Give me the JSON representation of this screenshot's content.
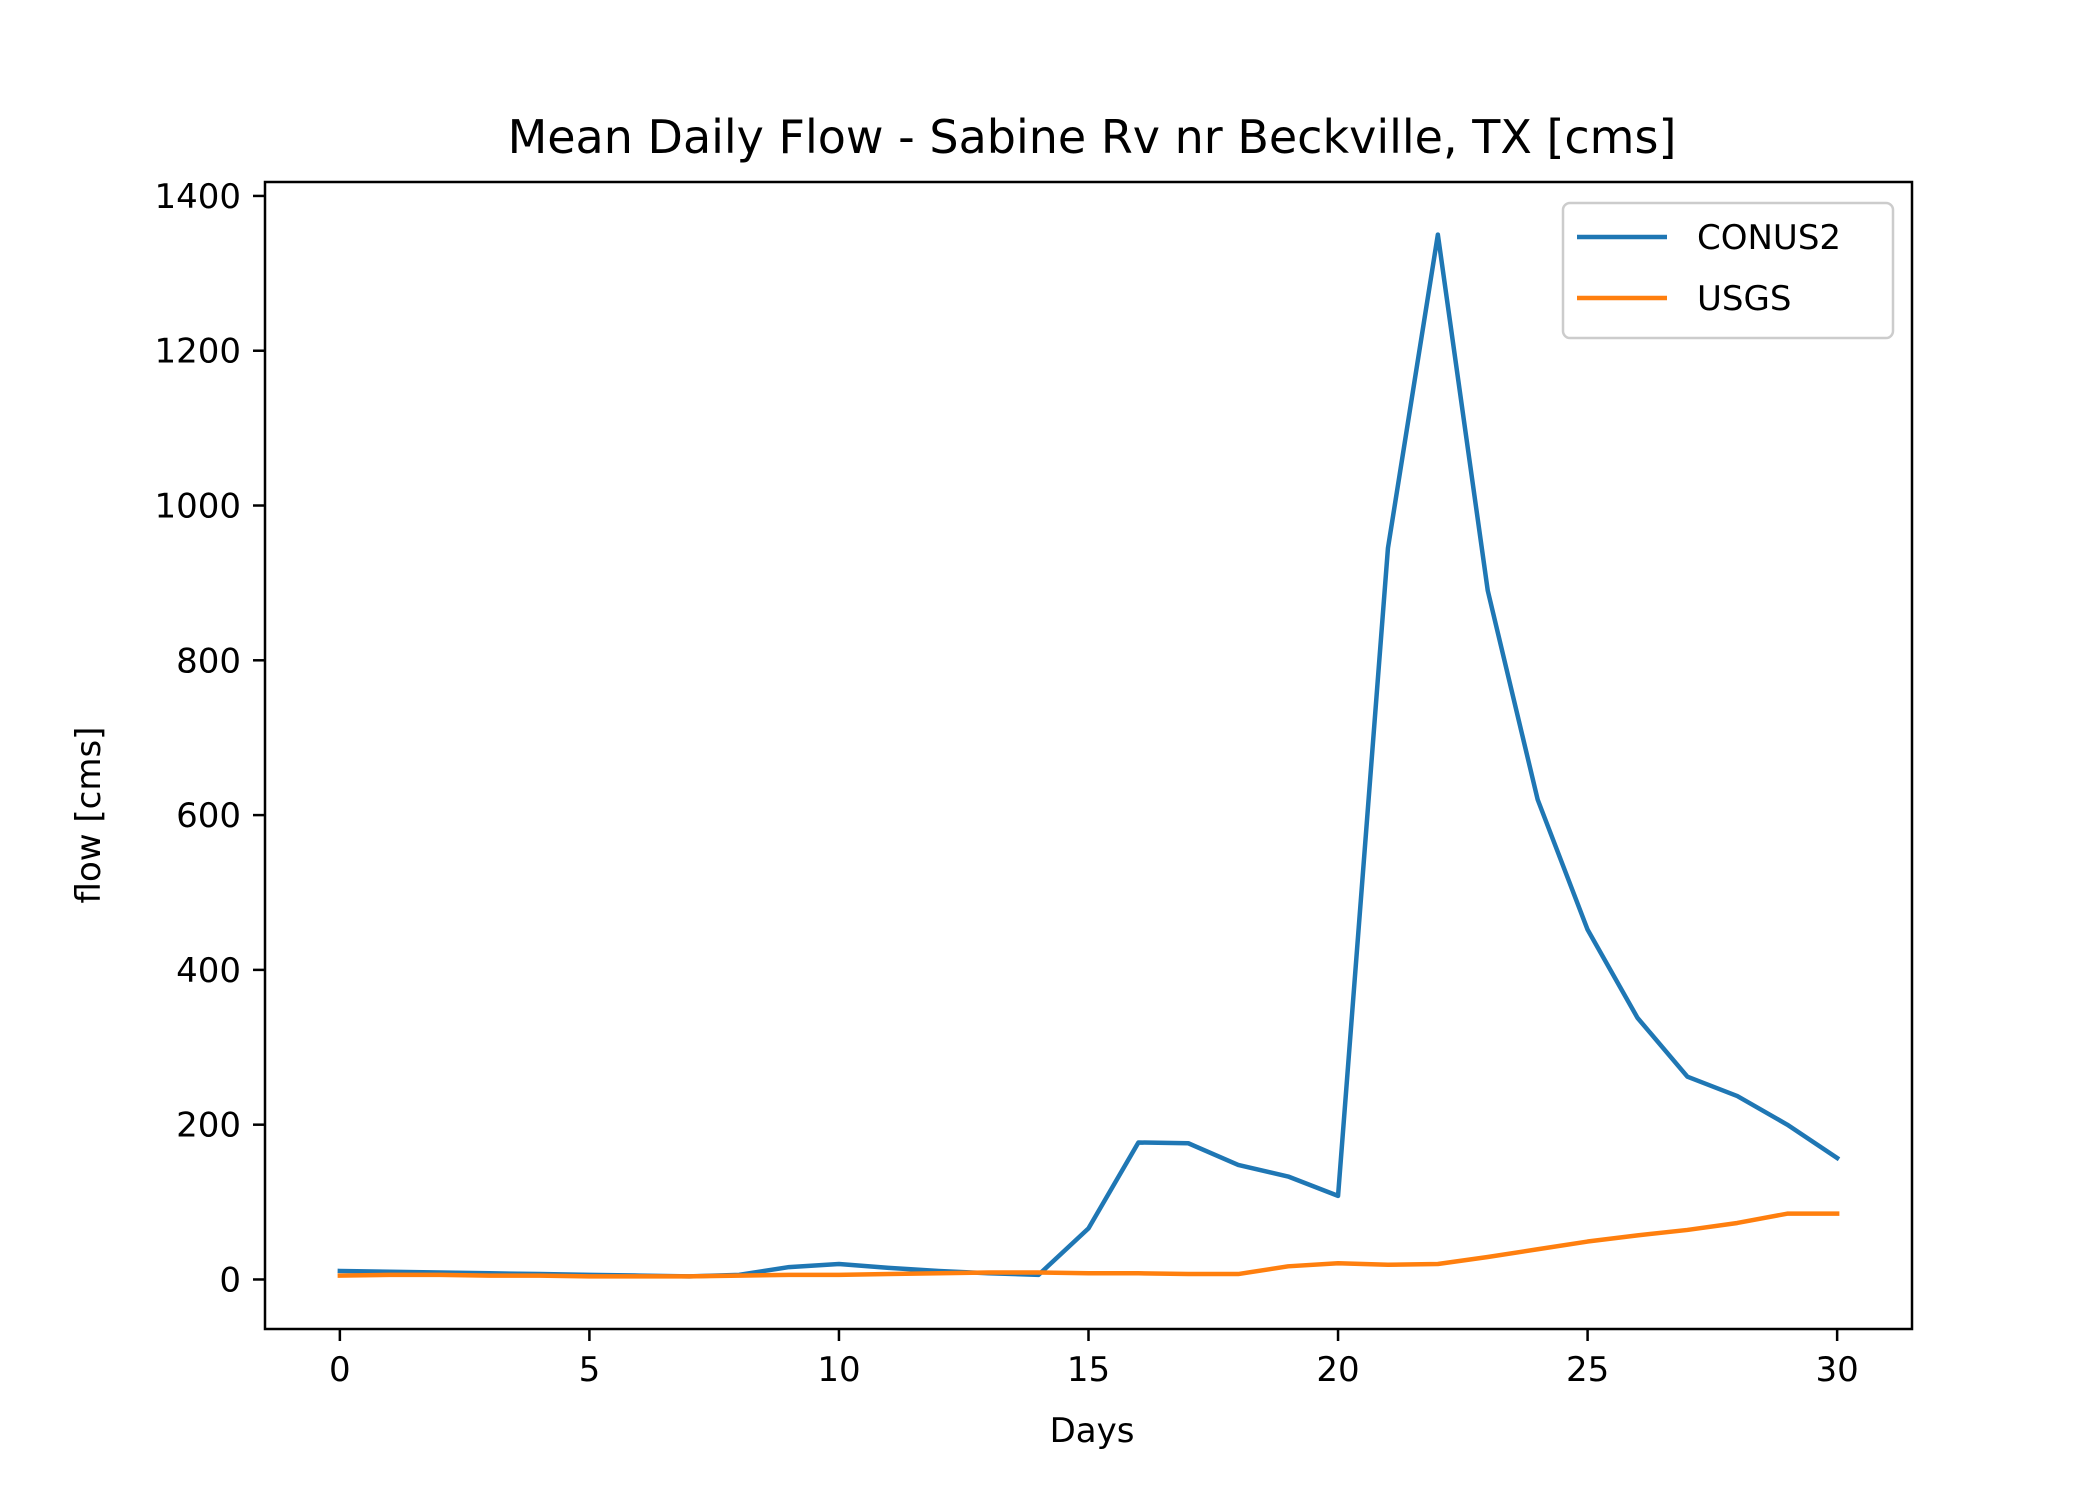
{
  "chart_data": {
    "type": "line",
    "title": "Mean Daily Flow - Sabine Rv nr Beckville, TX [cms]",
    "xlabel": "Days",
    "ylabel": "flow [cms]",
    "xlim": [
      -1.5,
      31.5
    ],
    "ylim": [
      -64,
      1418
    ],
    "xticks": [
      0,
      5,
      10,
      15,
      20,
      25,
      30
    ],
    "yticks": [
      0,
      200,
      400,
      600,
      800,
      1000,
      1200,
      1400
    ],
    "grid": false,
    "legend_position": "top-right",
    "x": [
      0,
      1,
      2,
      3,
      4,
      5,
      6,
      7,
      8,
      9,
      10,
      11,
      12,
      13,
      14,
      15,
      16,
      17,
      18,
      19,
      20,
      21,
      22,
      23,
      24,
      25,
      26,
      27,
      28,
      29,
      30
    ],
    "series": [
      {
        "name": "CONUS2",
        "color": "#1f77b4",
        "values": [
          11,
          10,
          9,
          8,
          7,
          6,
          5,
          4,
          6,
          16,
          20,
          15,
          11,
          8,
          6,
          66,
          177,
          176,
          148,
          133,
          108,
          945,
          1350,
          890,
          620,
          452,
          338,
          262,
          237,
          200,
          157
        ]
      },
      {
        "name": "USGS",
        "color": "#ff7f0e",
        "values": [
          5,
          6,
          6,
          5,
          5,
          4,
          4,
          4,
          5,
          6,
          6,
          7,
          8,
          9,
          9,
          8,
          8,
          7,
          7,
          17,
          21,
          19,
          20,
          29,
          39,
          49,
          57,
          64,
          73,
          85,
          85
        ]
      }
    ]
  }
}
